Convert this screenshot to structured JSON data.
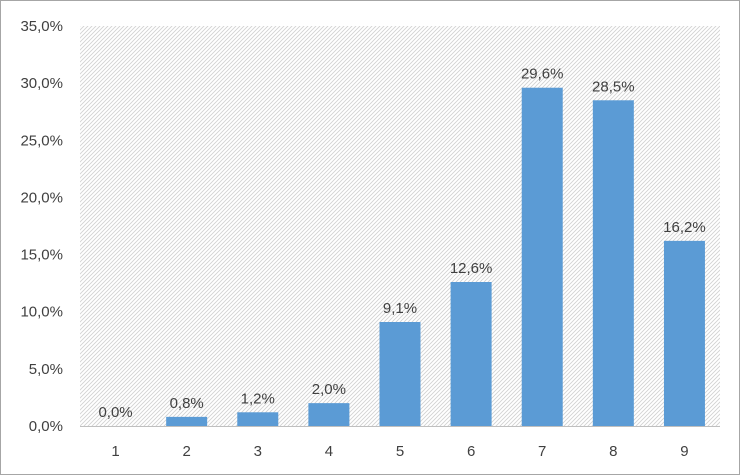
{
  "chart_data": {
    "type": "bar",
    "categories": [
      "1",
      "2",
      "3",
      "4",
      "5",
      "6",
      "7",
      "8",
      "9"
    ],
    "values": [
      0.0,
      0.8,
      1.2,
      2.0,
      9.1,
      12.6,
      29.6,
      28.5,
      16.2
    ],
    "data_labels": [
      "0,0%",
      "0,8%",
      "1,2%",
      "2,0%",
      "9,1%",
      "12,6%",
      "29,6%",
      "28,5%",
      "16,2%"
    ],
    "y_ticks": [
      0,
      5,
      10,
      15,
      20,
      25,
      30,
      35
    ],
    "y_tick_labels": [
      "0,0%",
      "5,0%",
      "10,0%",
      "15,0%",
      "20,0%",
      "25,0%",
      "30,0%",
      "35,0%"
    ],
    "ylim": [
      0,
      35
    ],
    "grid": false,
    "legend": "none",
    "title": "",
    "xlabel": "",
    "ylabel": "",
    "colors": {
      "bar": "#5b9bd5",
      "plot_hatch": "#d0d0d0",
      "axis_line": "#bfbfbf",
      "text": "#404040"
    }
  }
}
